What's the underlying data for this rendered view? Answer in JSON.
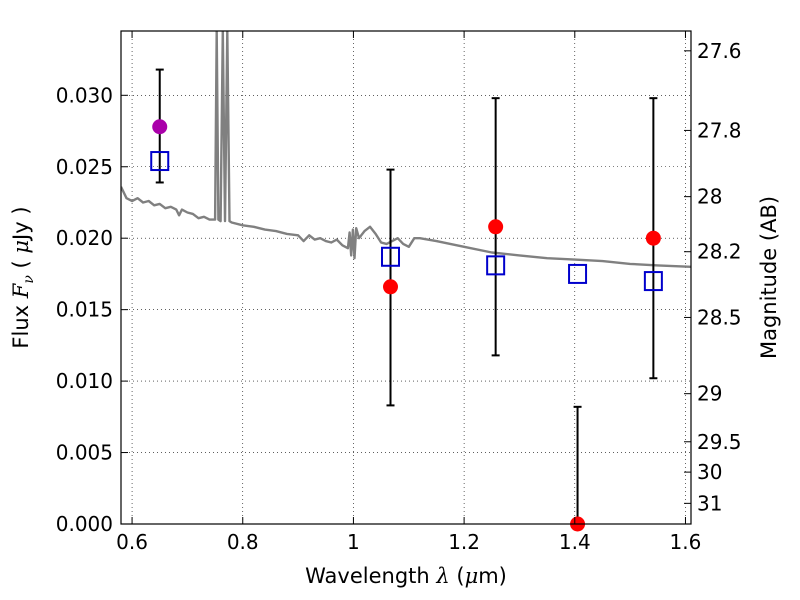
{
  "chart_data": {
    "type": "scatter",
    "title": "",
    "xlabel": {
      "pre": "Wavelength  ",
      "sym": "λ",
      "mid": " (",
      "unit_sym": "μ",
      "post": "m)"
    },
    "ylabel": {
      "pre": "Flux  ",
      "sym": "F",
      "sub": "ν",
      "mid": "  ( ",
      "unit_sym": "μ",
      "post": "Jy )"
    },
    "y2label": "Magnitude (AB)",
    "xlim": [
      0.58,
      1.61
    ],
    "ylim": [
      0.0,
      0.0345
    ],
    "grid": true,
    "x_ticks": [
      {
        "v": 0.6,
        "label": "0.6"
      },
      {
        "v": 0.8,
        "label": "0.8"
      },
      {
        "v": 1.0,
        "label": "1"
      },
      {
        "v": 1.2,
        "label": "1.2"
      },
      {
        "v": 1.4,
        "label": "1.4"
      },
      {
        "v": 1.6,
        "label": "1.6"
      }
    ],
    "y_ticks": [
      {
        "v": 0.0,
        "label": "0.000"
      },
      {
        "v": 0.005,
        "label": "0.005"
      },
      {
        "v": 0.01,
        "label": "0.010"
      },
      {
        "v": 0.015,
        "label": "0.015"
      },
      {
        "v": 0.02,
        "label": "0.020"
      },
      {
        "v": 0.025,
        "label": "0.025"
      },
      {
        "v": 0.03,
        "label": "0.030"
      }
    ],
    "mag_ticks": [
      {
        "mag": 27.6,
        "label": "27.6"
      },
      {
        "mag": 27.8,
        "label": "27.8"
      },
      {
        "mag": 28.0,
        "label": "28"
      },
      {
        "mag": 28.2,
        "label": "28.2"
      },
      {
        "mag": 28.5,
        "label": "28.5"
      },
      {
        "mag": 29.0,
        "label": "29"
      },
      {
        "mag": 29.5,
        "label": "29.5"
      },
      {
        "mag": 30.0,
        "label": "30"
      },
      {
        "mag": 31.0,
        "label": "31"
      }
    ],
    "series": [
      {
        "kind": "model-spectrum",
        "color": "#808080",
        "points": [
          [
            0.58,
            0.0236
          ],
          [
            0.59,
            0.0228
          ],
          [
            0.6,
            0.0226
          ],
          [
            0.61,
            0.0228
          ],
          [
            0.62,
            0.0225
          ],
          [
            0.63,
            0.0226
          ],
          [
            0.64,
            0.0223
          ],
          [
            0.65,
            0.0224
          ],
          [
            0.66,
            0.0221
          ],
          [
            0.67,
            0.0222
          ],
          [
            0.68,
            0.022
          ],
          [
            0.685,
            0.0216
          ],
          [
            0.69,
            0.022
          ],
          [
            0.7,
            0.0218
          ],
          [
            0.71,
            0.0217
          ],
          [
            0.72,
            0.0214
          ],
          [
            0.73,
            0.0215
          ],
          [
            0.74,
            0.0213
          ],
          [
            0.75,
            0.0213
          ],
          [
            0.753,
            0.0345
          ],
          [
            0.756,
            0.0213
          ],
          [
            0.76,
            0.0212
          ],
          [
            0.764,
            0.0345
          ],
          [
            0.768,
            0.0212
          ],
          [
            0.772,
            0.0345
          ],
          [
            0.776,
            0.0212
          ],
          [
            0.78,
            0.0211
          ],
          [
            0.8,
            0.0209
          ],
          [
            0.82,
            0.0208
          ],
          [
            0.84,
            0.0206
          ],
          [
            0.86,
            0.0205
          ],
          [
            0.88,
            0.0203
          ],
          [
            0.9,
            0.0202
          ],
          [
            0.91,
            0.0198
          ],
          [
            0.92,
            0.0202
          ],
          [
            0.93,
            0.0199
          ],
          [
            0.94,
            0.02
          ],
          [
            0.95,
            0.0198
          ],
          [
            0.96,
            0.0197
          ],
          [
            0.97,
            0.0199
          ],
          [
            0.98,
            0.0195
          ],
          [
            0.99,
            0.0193
          ],
          [
            0.993,
            0.0204
          ],
          [
            0.996,
            0.0188
          ],
          [
            0.999,
            0.0206
          ],
          [
            1.002,
            0.0186
          ],
          [
            1.005,
            0.0207
          ],
          [
            1.01,
            0.02
          ],
          [
            1.02,
            0.0205
          ],
          [
            1.03,
            0.0208
          ],
          [
            1.04,
            0.0203
          ],
          [
            1.05,
            0.0197
          ],
          [
            1.06,
            0.0196
          ],
          [
            1.08,
            0.02
          ],
          [
            1.09,
            0.0196
          ],
          [
            1.1,
            0.0194
          ],
          [
            1.11,
            0.02
          ],
          [
            1.12,
            0.02
          ],
          [
            1.15,
            0.0198
          ],
          [
            1.2,
            0.0194
          ],
          [
            1.25,
            0.019
          ],
          [
            1.3,
            0.0188
          ],
          [
            1.35,
            0.0186
          ],
          [
            1.4,
            0.0185
          ],
          [
            1.45,
            0.0184
          ],
          [
            1.5,
            0.0182
          ],
          [
            1.55,
            0.0181
          ],
          [
            1.61,
            0.018
          ]
        ]
      },
      {
        "kind": "filled-circles",
        "color": "#ff0000",
        "points": [
          {
            "x": 1.067,
            "y": 0.0166
          },
          {
            "x": 1.257,
            "y": 0.0208
          },
          {
            "x": 1.405,
            "y": 0.0
          },
          {
            "x": 1.542,
            "y": 0.02
          }
        ]
      },
      {
        "kind": "filled-circles",
        "color": "#aa00aa",
        "points": [
          {
            "x": 0.65,
            "y": 0.0278
          }
        ]
      },
      {
        "kind": "open-squares",
        "color": "#0000cc",
        "points": [
          {
            "x": 0.65,
            "y": 0.0254
          },
          {
            "x": 1.067,
            "y": 0.0187
          },
          {
            "x": 1.257,
            "y": 0.0181
          },
          {
            "x": 1.405,
            "y": 0.0175
          },
          {
            "x": 1.542,
            "y": 0.017
          }
        ]
      },
      {
        "kind": "error-bars",
        "color": "#000000",
        "bars": [
          {
            "x": 0.65,
            "low": 0.0239,
            "high": 0.0318
          },
          {
            "x": 1.067,
            "low": 0.0083,
            "high": 0.0248
          },
          {
            "x": 1.257,
            "low": 0.0118,
            "high": 0.0298
          },
          {
            "x": 1.405,
            "low": 0.0,
            "high": 0.0082
          },
          {
            "x": 1.542,
            "low": 0.0102,
            "high": 0.0298
          }
        ]
      }
    ]
  }
}
